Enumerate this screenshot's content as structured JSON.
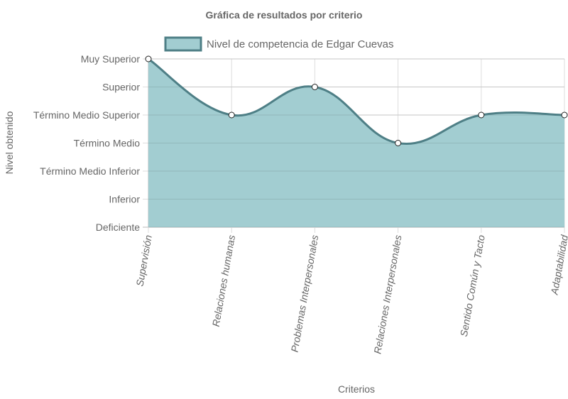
{
  "chart_data": {
    "type": "area",
    "title": "Gráfica de resultados por criterio",
    "xlabel": "Criterios",
    "ylabel": "Nivel obtenido",
    "categories": [
      "Supervisión",
      "Relaciones humanas",
      "Problemas Interpersonales",
      "Relaciones Interpersonales",
      "Sentido Común y Tacto",
      "Adaptabilidad"
    ],
    "y_levels": [
      "Deficiente",
      "Inferior",
      "Término Medio Inferior",
      "Término Medio",
      "Término Medio Superior",
      "Superior",
      "Muy Superior"
    ],
    "ylim": [
      0,
      6
    ],
    "series": [
      {
        "name": "Nivel de competencia de Edgar Cuevas",
        "values": [
          6,
          4,
          5,
          3,
          4,
          4
        ],
        "fill_color": "#a2cdd1",
        "line_color": "#4e7f86"
      }
    ],
    "grid": true,
    "legend_position": "top"
  }
}
